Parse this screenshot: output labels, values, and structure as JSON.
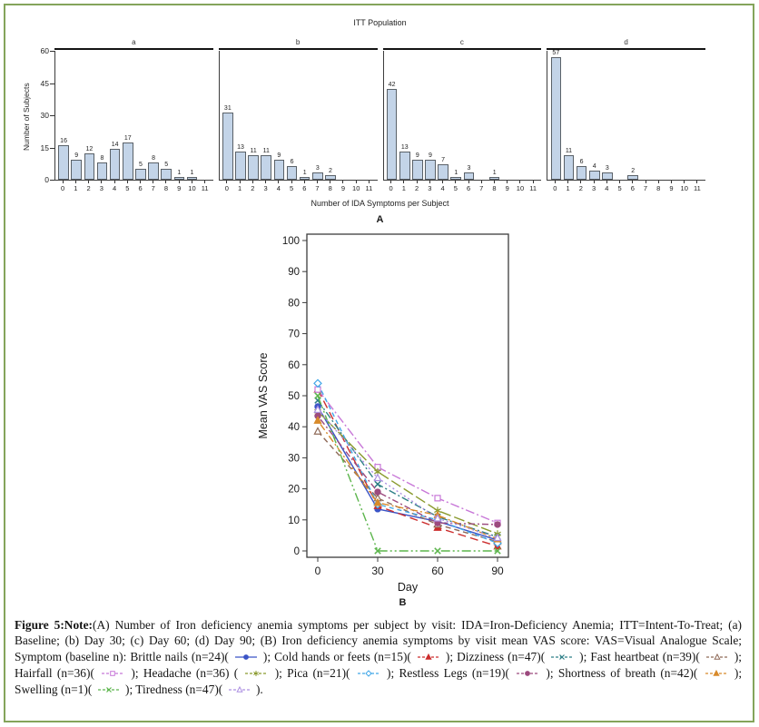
{
  "chart_data": [
    {
      "type": "bar",
      "title": "ITT Population",
      "ylabel": "Number of Subjects",
      "xlabel": "Number of IDA Symptoms per Subject",
      "panel_label": "A",
      "ylim": [
        0,
        60
      ],
      "yticks": [
        0,
        15,
        30,
        45,
        60
      ],
      "categories": [
        "0",
        "1",
        "2",
        "3",
        "4",
        "5",
        "6",
        "7",
        "8",
        "9",
        "10",
        "11"
      ],
      "bar_color": "#c3d4e8",
      "bar_border": "#5a6168",
      "series": [
        {
          "name": "a",
          "values": [
            16,
            9,
            12,
            8,
            14,
            17,
            5,
            8,
            5,
            1,
            1,
            0
          ]
        },
        {
          "name": "b",
          "values": [
            31,
            13,
            11,
            11,
            9,
            6,
            1,
            3,
            2,
            0,
            0,
            0
          ]
        },
        {
          "name": "c",
          "values": [
            42,
            13,
            9,
            9,
            7,
            1,
            3,
            0,
            1,
            0,
            0,
            0
          ]
        },
        {
          "name": "d",
          "values": [
            57,
            11,
            6,
            4,
            3,
            0,
            2,
            0,
            0,
            0,
            0,
            0
          ]
        }
      ]
    },
    {
      "type": "line",
      "ylabel": "Mean VAS Score",
      "xlabel": "Day",
      "panel_label": "B",
      "x": [
        0,
        30,
        60,
        90
      ],
      "ylim": [
        0,
        100
      ],
      "yticks": [
        0,
        10,
        20,
        30,
        40,
        50,
        60,
        70,
        80,
        90,
        100
      ],
      "xticks": [
        0,
        30,
        60,
        90
      ],
      "series": [
        {
          "name": "Brittle nails",
          "n": 24,
          "color": "#3b54c6",
          "marker": "circle",
          "fill": true,
          "dash": "",
          "values": [
            46.5,
            13.5,
            9.5,
            3.5
          ]
        },
        {
          "name": "Cold hands or feets",
          "n": 15,
          "color": "#cc2d2d",
          "marker": "triangle",
          "fill": true,
          "dash": "9,5",
          "values": [
            52,
            14.5,
            7.5,
            1.5
          ]
        },
        {
          "name": "Dizziness",
          "n": 47,
          "color": "#2e7f86",
          "marker": "x",
          "fill": true,
          "dash": "8,3,2,3",
          "values": [
            48.5,
            21.5,
            11,
            4.5
          ]
        },
        {
          "name": "Fast heartbeat",
          "n": 39,
          "color": "#8f6a58",
          "marker": "triangle",
          "fill": false,
          "dash": "6,4",
          "values": [
            38.5,
            17,
            8.5,
            3
          ]
        },
        {
          "name": "Hairfall",
          "n": 36,
          "color": "#c878d8",
          "marker": "square",
          "fill": false,
          "dash": "10,3,2,3",
          "values": [
            52,
            27,
            17,
            9
          ]
        },
        {
          "name": "Headache",
          "n": 36,
          "color": "#8a9a2e",
          "marker": "star",
          "fill": true,
          "dash": "12,4",
          "values": [
            45,
            25.5,
            13,
            5.5
          ]
        },
        {
          "name": "Pica",
          "n": 21,
          "color": "#41a7e8",
          "marker": "diamond",
          "fill": false,
          "dash": "5,4",
          "values": [
            54,
            15,
            10,
            2.5
          ]
        },
        {
          "name": "Restless Legs",
          "n": 19,
          "color": "#9c4a7e",
          "marker": "circle",
          "fill": true,
          "dash": "2,3,7,3",
          "values": [
            43.5,
            19,
            9,
            8.5
          ]
        },
        {
          "name": "Shortness of breath",
          "n": 42,
          "color": "#d88a2a",
          "marker": "triangle",
          "fill": true,
          "dash": "2,3,8,3",
          "values": [
            42,
            15.5,
            11.5,
            3.8
          ]
        },
        {
          "name": "Swelling",
          "n": 1,
          "color": "#5cb54c",
          "marker": "x",
          "fill": true,
          "dash": "10,3,2,3,2,3",
          "values": [
            50,
            0,
            0,
            0
          ]
        },
        {
          "name": "Tiredness",
          "n": 47,
          "color": "#ac8fe2",
          "marker": "triangle",
          "fill": false,
          "dash": "2,3",
          "values": [
            45.5,
            23.5,
            10.5,
            4.2
          ]
        }
      ]
    }
  ],
  "caption": {
    "bold": "Figure 5:Note:",
    "intro": "(A) Number of Iron deficiency anemia symptoms per subject by visit: IDA=Iron-Deficiency Anemia; ITT=Intent-To-Treat; (a) Baseline; (b) Day 30; (c) Day 60; (d) Day 90; (B) Iron deficiency anemia symptoms by visit mean VAS score: VAS=Visual Analogue Scale; Symptom (baseline n): ",
    "items": [
      "Brittle nails (n=24)",
      "Cold hands or feets (n=15)",
      "Dizziness (n=47)",
      "Fast heartbeat (n=39)",
      "Hairfall (n=36)",
      "Headache (n=36) ",
      "Pica (n=21)",
      "Restless Legs (n=19)",
      "Shortness of breath (n=42)",
      "Swelling (n=1)",
      "Tiredness (n=47)"
    ],
    "separator": "; ",
    "suffix": "."
  },
  "colors": {
    "figure_border": "#84a45b",
    "axis": "#3c3c3c"
  }
}
